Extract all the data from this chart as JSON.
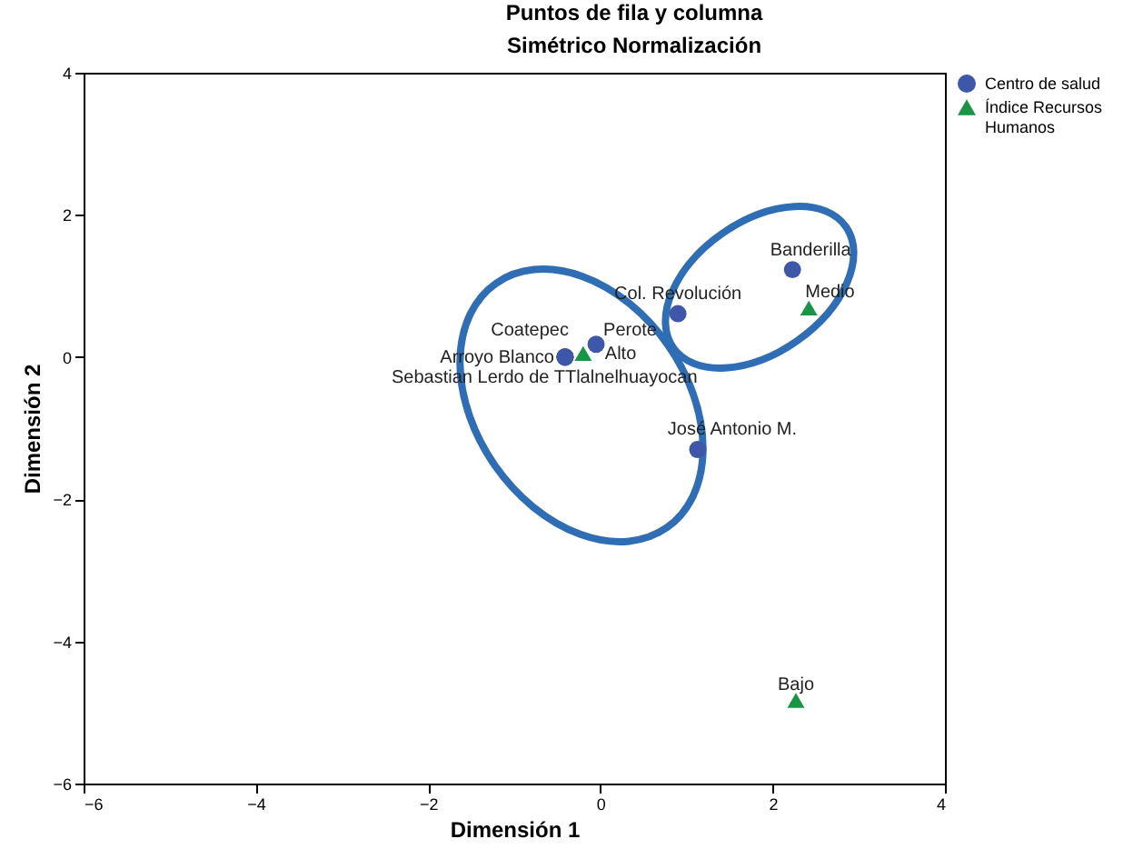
{
  "chart_data": {
    "type": "scatter",
    "title": "Puntos de fila y columna",
    "subtitle": "Simétrico Normalización",
    "xlabel": "Dimensión 1",
    "ylabel": "Dimensión 2",
    "xlim": [
      -6,
      4
    ],
    "xticks": [
      -6,
      -4,
      -2,
      0,
      2,
      4
    ],
    "ylim": [
      -6,
      4
    ],
    "yticks": [
      -6,
      -4,
      -2,
      0,
      2,
      4
    ],
    "grid": false,
    "legend": "top right",
    "series": [
      {
        "name": "Centro de salud",
        "color": "#3f57a8",
        "marker": "circle",
        "x": [
          2.23,
          0.9,
          -0.05,
          -0.41,
          -0.41,
          -0.41,
          -0.41,
          1.13
        ],
        "values": [
          1.23,
          0.61,
          0.18,
          0.0,
          0.0,
          0.0,
          0.0,
          -1.3
        ]
      },
      {
        "name": "Índice Recursos Humanos",
        "color": "#1a9445",
        "marker": "triangle",
        "x": [
          -0.2,
          2.42,
          2.27
        ],
        "values": [
          0.05,
          0.69,
          -4.83
        ]
      }
    ],
    "annotations": [
      {
        "text": "Banderilla",
        "x": 2.23,
        "y": 1.23
      },
      {
        "text": "Col. Revolución",
        "x": 0.9,
        "y": 0.61
      },
      {
        "text": "Perote",
        "x": -0.05,
        "y": 0.18
      },
      {
        "text": "Coatepec",
        "x": -0.41,
        "y": 0.0
      },
      {
        "text": "Arroyo Blanco",
        "x": -0.41,
        "y": 0.0
      },
      {
        "text": "Sebastian Lerdo de T",
        "x": -0.41,
        "y": 0.0
      },
      {
        "text": "Tlalnelhuayocan",
        "x": -0.41,
        "y": 0.0
      },
      {
        "text": "José Antonio M.",
        "x": 1.13,
        "y": -1.3
      },
      {
        "text": "Alto",
        "x": -0.2,
        "y": 0.05
      },
      {
        "text": "Medio",
        "x": 2.42,
        "y": 0.69
      },
      {
        "text": "Bajo",
        "x": 2.27,
        "y": -4.83
      }
    ]
  }
}
